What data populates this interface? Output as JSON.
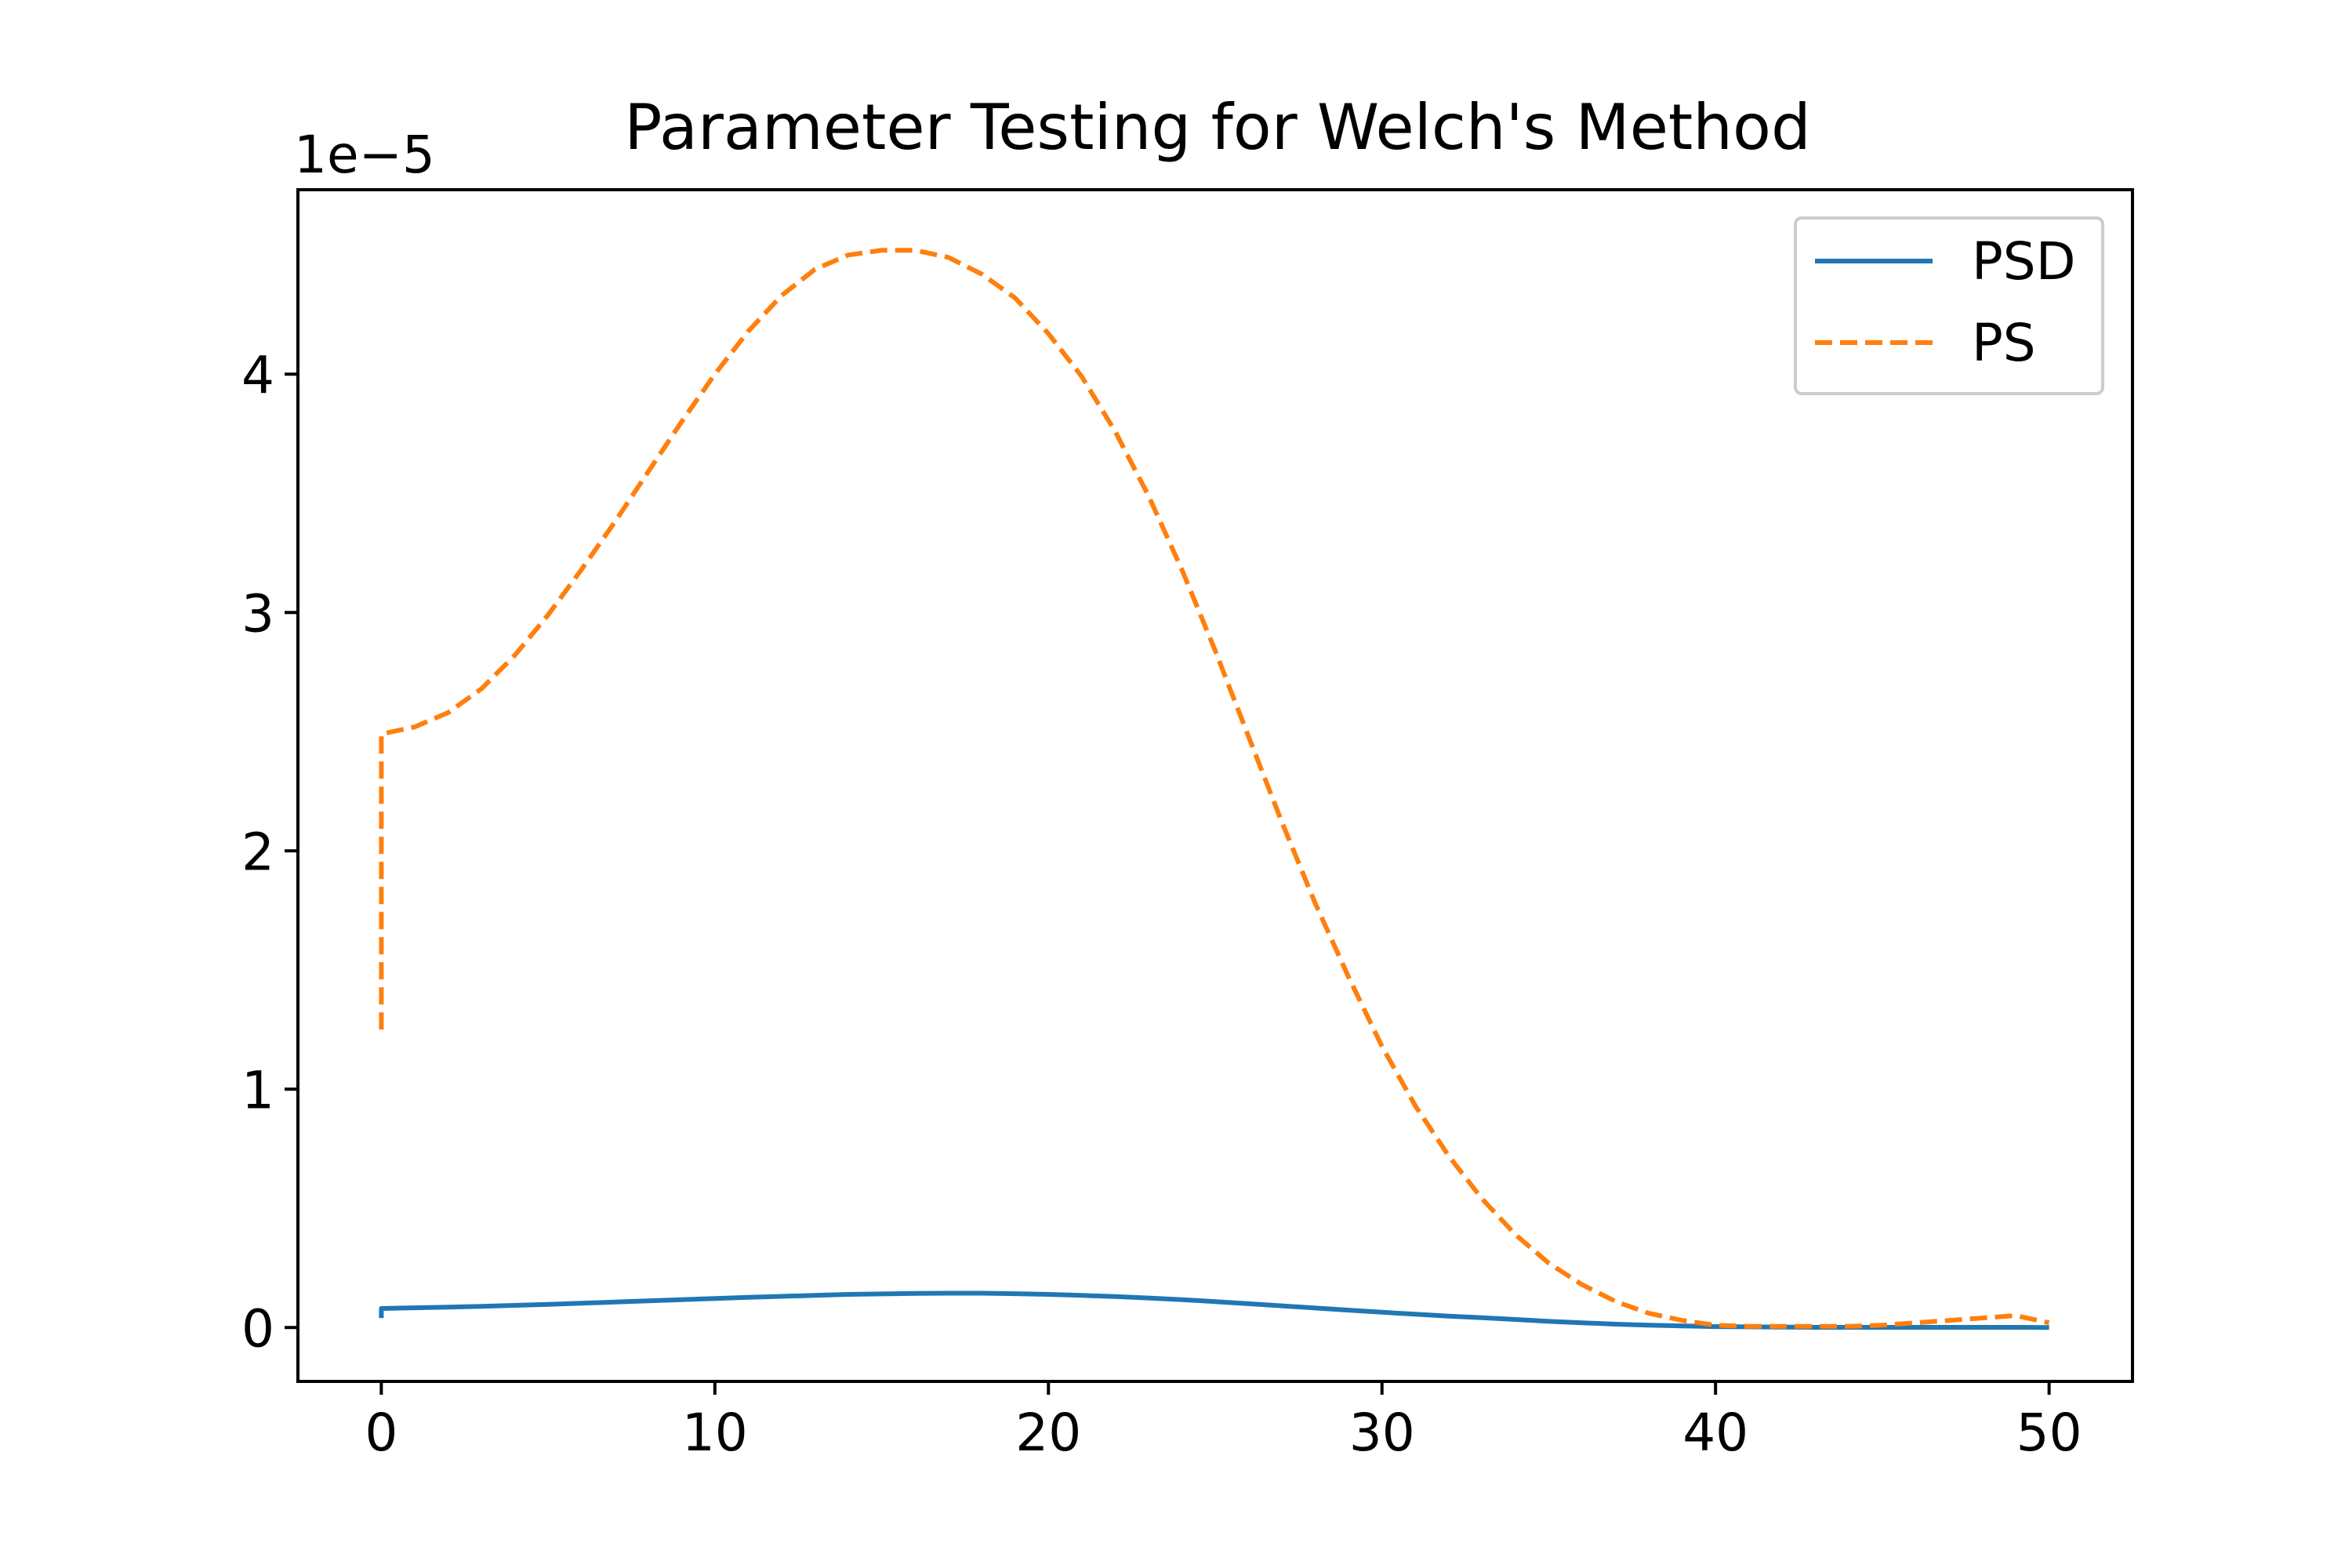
{
  "chart_data": {
    "type": "line",
    "title": "Parameter Testing for Welch's Method",
    "xlabel": "",
    "ylabel": "",
    "y_offset_label": "1e−5",
    "xlim": [
      -2.5,
      52.5
    ],
    "ylim": [
      -0.226,
      4.774
    ],
    "x_ticks": [
      0,
      10,
      20,
      30,
      40,
      50
    ],
    "x_tick_labels": [
      "0",
      "10",
      "20",
      "30",
      "40",
      "50"
    ],
    "y_ticks": [
      0,
      1,
      2,
      3,
      4
    ],
    "y_tick_labels": [
      "0",
      "1",
      "2",
      "3",
      "4"
    ],
    "grid": false,
    "legend_position": "top-right",
    "series": [
      {
        "name": "PSD",
        "color": "#1f77b4",
        "linestyle": "solid",
        "x": [
          0,
          0,
          1,
          2,
          3,
          4,
          5,
          6,
          7,
          8,
          9,
          10,
          11,
          12,
          13,
          14,
          15,
          16,
          17,
          18,
          19,
          20,
          21,
          22,
          23,
          24,
          25,
          26,
          27,
          28,
          29,
          30,
          31,
          32,
          33,
          34,
          35,
          36,
          37,
          38,
          39,
          40,
          41,
          42,
          43,
          44,
          45,
          46,
          47,
          48,
          49,
          50
        ],
        "y": [
          0.04,
          0.08,
          0.083,
          0.086,
          0.089,
          0.093,
          0.097,
          0.102,
          0.107,
          0.112,
          0.117,
          0.122,
          0.127,
          0.131,
          0.135,
          0.139,
          0.141,
          0.143,
          0.144,
          0.144,
          0.142,
          0.139,
          0.135,
          0.13,
          0.124,
          0.117,
          0.109,
          0.1,
          0.091,
          0.082,
          0.073,
          0.064,
          0.056,
          0.048,
          0.041,
          0.034,
          0.026,
          0.02,
          0.014,
          0.01,
          0.007,
          0.004,
          0.003,
          0.002,
          0.001,
          0.001,
          0.001,
          0.001,
          0.001,
          0.001,
          0.001,
          0.0
        ]
      },
      {
        "name": "PS",
        "color": "#ff7f0e",
        "linestyle": "dashed",
        "x": [
          0,
          0,
          1,
          2,
          3,
          4,
          5,
          6,
          7,
          8,
          9,
          10,
          11,
          12,
          13,
          14,
          15,
          16,
          17,
          18,
          19,
          20,
          21,
          22,
          23,
          24,
          25,
          26,
          27,
          28,
          29,
          30,
          31,
          32,
          33,
          34,
          35,
          36,
          37,
          38,
          39,
          40,
          41,
          42,
          43,
          44,
          45,
          46,
          47,
          48,
          49,
          50
        ],
        "y": [
          1.25,
          2.49,
          2.52,
          2.58,
          2.68,
          2.82,
          2.99,
          3.18,
          3.38,
          3.59,
          3.8,
          4.0,
          4.18,
          4.33,
          4.44,
          4.5,
          4.52,
          4.52,
          4.49,
          4.42,
          4.32,
          4.17,
          3.99,
          3.76,
          3.49,
          3.18,
          2.84,
          2.48,
          2.12,
          1.78,
          1.47,
          1.18,
          0.93,
          0.72,
          0.54,
          0.39,
          0.27,
          0.18,
          0.11,
          0.06,
          0.03,
          0.01,
          0.005,
          0.005,
          0.005,
          0.005,
          0.01,
          0.02,
          0.03,
          0.04,
          0.05,
          0.02
        ]
      }
    ]
  }
}
